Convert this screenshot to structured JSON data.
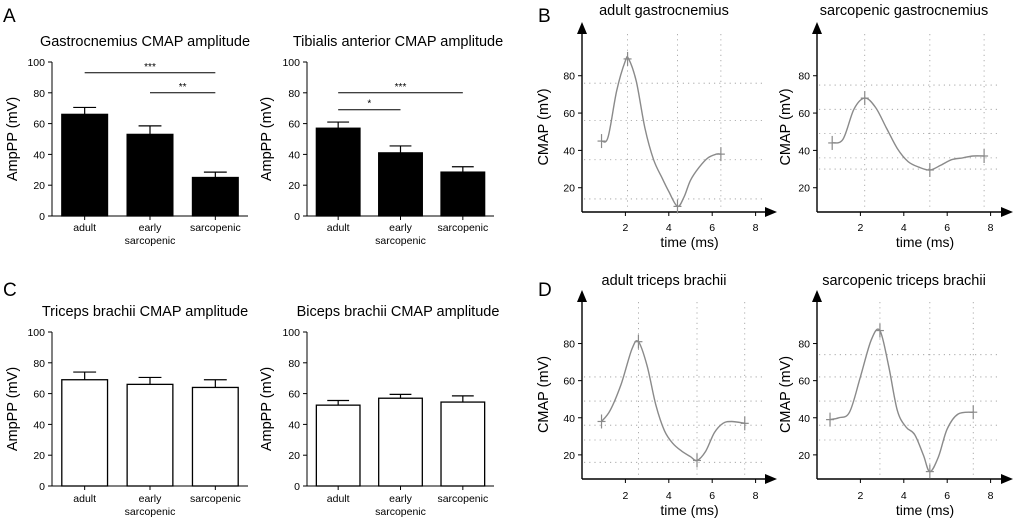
{
  "panel_labels": [
    "A",
    "B",
    "C",
    "D"
  ],
  "chart_data": [
    {
      "id": "A1",
      "type": "bar",
      "panel": "A",
      "title": "Gastrocnemius CMAP amplitude",
      "ylabel": "AmpPP (mV)",
      "xlabel": "",
      "ylim": [
        0,
        100
      ],
      "yticks": [
        0,
        20,
        40,
        60,
        80,
        100
      ],
      "categories": [
        "adult",
        "early\nsarcopenic",
        "sarcopenic"
      ],
      "values": [
        66,
        53,
        25
      ],
      "errors": [
        4.5,
        5.5,
        3.5
      ],
      "fill": "black",
      "significance": [
        {
          "from": 0,
          "to": 2,
          "label": "***",
          "y": 93
        },
        {
          "from": 1,
          "to": 2,
          "label": "**",
          "y": 80
        }
      ]
    },
    {
      "id": "A2",
      "type": "bar",
      "panel": "A",
      "title": "Tibialis anterior CMAP amplitude",
      "ylabel": "AmpPP (mV)",
      "xlabel": "",
      "ylim": [
        0,
        100
      ],
      "yticks": [
        0,
        20,
        40,
        60,
        80,
        100
      ],
      "categories": [
        "adult",
        "early\nsarcopenic",
        "sarcopenic"
      ],
      "values": [
        57,
        41,
        28.5
      ],
      "errors": [
        4,
        4.5,
        3.5
      ],
      "fill": "black",
      "significance": [
        {
          "from": 0,
          "to": 2,
          "label": "***",
          "y": 80
        },
        {
          "from": 0,
          "to": 1,
          "label": "*",
          "y": 69
        }
      ]
    },
    {
      "id": "C1",
      "type": "bar",
      "panel": "C",
      "title": "Triceps brachii CMAP amplitude",
      "ylabel": "AmpPP (mV)",
      "xlabel": "",
      "ylim": [
        0,
        100
      ],
      "yticks": [
        0,
        20,
        40,
        60,
        80,
        100
      ],
      "categories": [
        "adult",
        "early\nsarcopenic",
        "sarcopenic"
      ],
      "values": [
        69,
        66,
        64
      ],
      "errors": [
        5,
        4.5,
        5
      ],
      "fill": "white",
      "significance": []
    },
    {
      "id": "C2",
      "type": "bar",
      "panel": "C",
      "title": "Biceps brachii CMAP amplitude",
      "ylabel": "AmpPP (mV)",
      "xlabel": "",
      "ylim": [
        0,
        100
      ],
      "yticks": [
        0,
        20,
        40,
        60,
        80,
        100
      ],
      "categories": [
        "adult",
        "early\nsarcopenic",
        "sarcopenic"
      ],
      "values": [
        52.5,
        57,
        54.5
      ],
      "errors": [
        3,
        2.5,
        4
      ],
      "fill": "white",
      "significance": []
    },
    {
      "id": "B1",
      "type": "line",
      "panel": "B",
      "title": "adult gastrocnemius",
      "ylabel": "CMAP (mV)",
      "xlabel": "time (ms)",
      "xlim": [
        0,
        9
      ],
      "ylim": [
        7,
        97
      ],
      "xticks": [
        2,
        4,
        6,
        8
      ],
      "yticks": [
        20,
        40,
        60,
        80
      ],
      "x": [
        0.9,
        1.2,
        1.6,
        2.0,
        2.15,
        2.5,
        2.9,
        3.3,
        3.7,
        4.0,
        4.4,
        4.7,
        5.0,
        5.4,
        5.8,
        6.2,
        6.4
      ],
      "y": [
        45,
        47,
        72,
        88,
        89,
        77,
        52,
        35,
        25,
        18,
        10,
        15,
        24,
        31,
        36,
        38,
        38
      ],
      "markers": [
        [
          0.9,
          45
        ],
        [
          2.1,
          89
        ],
        [
          4.4,
          10
        ],
        [
          6.4,
          38
        ]
      ],
      "hgrid": [
        14,
        35,
        56,
        76
      ],
      "vgrid": [
        2.1,
        4.4,
        6.4
      ]
    },
    {
      "id": "B2",
      "type": "line",
      "panel": "B",
      "title": "sarcopenic gastrocnemius",
      "ylabel": "CMAP (mV)",
      "xlabel": "time (ms)",
      "xlim": [
        0,
        9
      ],
      "ylim": [
        7,
        97
      ],
      "xticks": [
        2,
        4,
        6,
        8
      ],
      "yticks": [
        20,
        40,
        60,
        80
      ],
      "x": [
        0.7,
        1.2,
        1.7,
        2.2,
        2.7,
        3.2,
        3.7,
        4.2,
        4.7,
        5.2,
        5.7,
        6.2,
        6.7,
        7.2,
        7.7
      ],
      "y": [
        44,
        46,
        62,
        68,
        63,
        52,
        41,
        34,
        31,
        29.5,
        32,
        35,
        36,
        37,
        37
      ],
      "markers": [
        [
          0.7,
          44
        ],
        [
          2.2,
          68
        ],
        [
          5.2,
          29.5
        ],
        [
          7.7,
          37
        ]
      ],
      "hgrid": [
        30,
        36,
        49,
        62,
        75
      ],
      "vgrid": [
        2.2,
        5.2,
        7.7
      ]
    },
    {
      "id": "D1",
      "type": "line",
      "panel": "D",
      "title": "adult triceps brachii",
      "ylabel": "CMAP (mV)",
      "xlabel": "time (ms)",
      "xlim": [
        0,
        9
      ],
      "ylim": [
        7,
        97
      ],
      "xticks": [
        2,
        4,
        6,
        8
      ],
      "yticks": [
        20,
        40,
        60,
        80
      ],
      "x": [
        0.9,
        1.3,
        1.8,
        2.3,
        2.6,
        3.0,
        3.4,
        3.8,
        4.2,
        4.6,
        5.0,
        5.3,
        5.7,
        6.1,
        6.5,
        6.9,
        7.5
      ],
      "y": [
        38,
        44,
        58,
        77,
        81,
        68,
        47,
        33,
        26,
        22,
        19,
        17,
        22,
        32,
        37,
        38,
        37
      ],
      "markers": [
        [
          0.9,
          38
        ],
        [
          2.6,
          81
        ],
        [
          5.3,
          17
        ],
        [
          7.5,
          37
        ]
      ],
      "hgrid": [
        16,
        28,
        36,
        49,
        62
      ],
      "vgrid": [
        2.6,
        5.3,
        7.5
      ]
    },
    {
      "id": "D2",
      "type": "line",
      "panel": "D",
      "title": "sarcopenic triceps brachii",
      "ylabel": "CMAP (mV)",
      "xlabel": "time (ms)",
      "xlim": [
        0,
        9
      ],
      "ylim": [
        7,
        97
      ],
      "xticks": [
        2,
        4,
        6,
        8
      ],
      "yticks": [
        20,
        40,
        60,
        80
      ],
      "x": [
        0.6,
        1.0,
        1.5,
        2.0,
        2.5,
        2.9,
        3.3,
        3.7,
        4.1,
        4.5,
        4.9,
        5.2,
        5.6,
        6.0,
        6.5,
        7.2
      ],
      "y": [
        39,
        40,
        43,
        62,
        82,
        87,
        68,
        44,
        35,
        31,
        20,
        11,
        19,
        34,
        42,
        43
      ],
      "markers": [
        [
          0.6,
          39
        ],
        [
          2.9,
          87
        ],
        [
          5.2,
          11
        ],
        [
          7.2,
          43
        ]
      ],
      "hgrid": [
        28,
        36,
        49,
        62,
        74
      ],
      "vgrid": [
        2.9,
        5.2,
        7.2
      ]
    }
  ]
}
